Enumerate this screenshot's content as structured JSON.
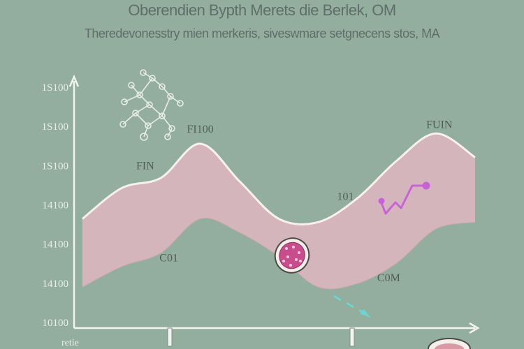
{
  "title": "Oberendien Bypth Merets die Berlek, OM",
  "subtitle": "Theredevonesstry mien merkeris, siveswmare setgnecens stos, MA",
  "chart_data": {
    "type": "area",
    "title": "Oberendien Bypth Merets die Berlek, OM",
    "subtitle": "Theredevonesstry mien merkeris, siveswmare setgnecens stos, MA",
    "xlabel": "retie",
    "ylabel": "",
    "y_tick_labels": [
      "1S100",
      "1S100",
      "1S100",
      "14100",
      "14100",
      "14100",
      "10100"
    ],
    "annotations": [
      {
        "text": "FI100",
        "where": "upper band peak"
      },
      {
        "text": "FUIN",
        "where": "right upper peak"
      },
      {
        "text": "FIN",
        "where": "left upper shoulder"
      },
      {
        "text": "101",
        "where": "upper band valley"
      },
      {
        "text": "C01",
        "where": "lower band left"
      },
      {
        "text": "C0M",
        "where": "lower band right"
      }
    ],
    "x": [
      0,
      1,
      2,
      3,
      4,
      5,
      6,
      7,
      8,
      9,
      10
    ],
    "series": [
      {
        "values": [
          3.0,
          3.9,
          4.2,
          5.2,
          4.1,
          3.0,
          2.9,
          3.6,
          4.7,
          5.5,
          4.8
        ]
      },
      {
        "values": [
          1.0,
          1.6,
          2.0,
          3.0,
          2.6,
          1.9,
          1.0,
          1.1,
          1.7,
          2.7,
          2.9
        ]
      }
    ],
    "ylim": [
      0,
      7
    ],
    "legend": "none",
    "grid": false
  },
  "colors": {
    "background": "#93ae9f",
    "band_fill": "#d4b5bc",
    "band_edge": "#f5f1ef",
    "axis": "#f2f4f0",
    "accent_line": "#c763d6"
  }
}
